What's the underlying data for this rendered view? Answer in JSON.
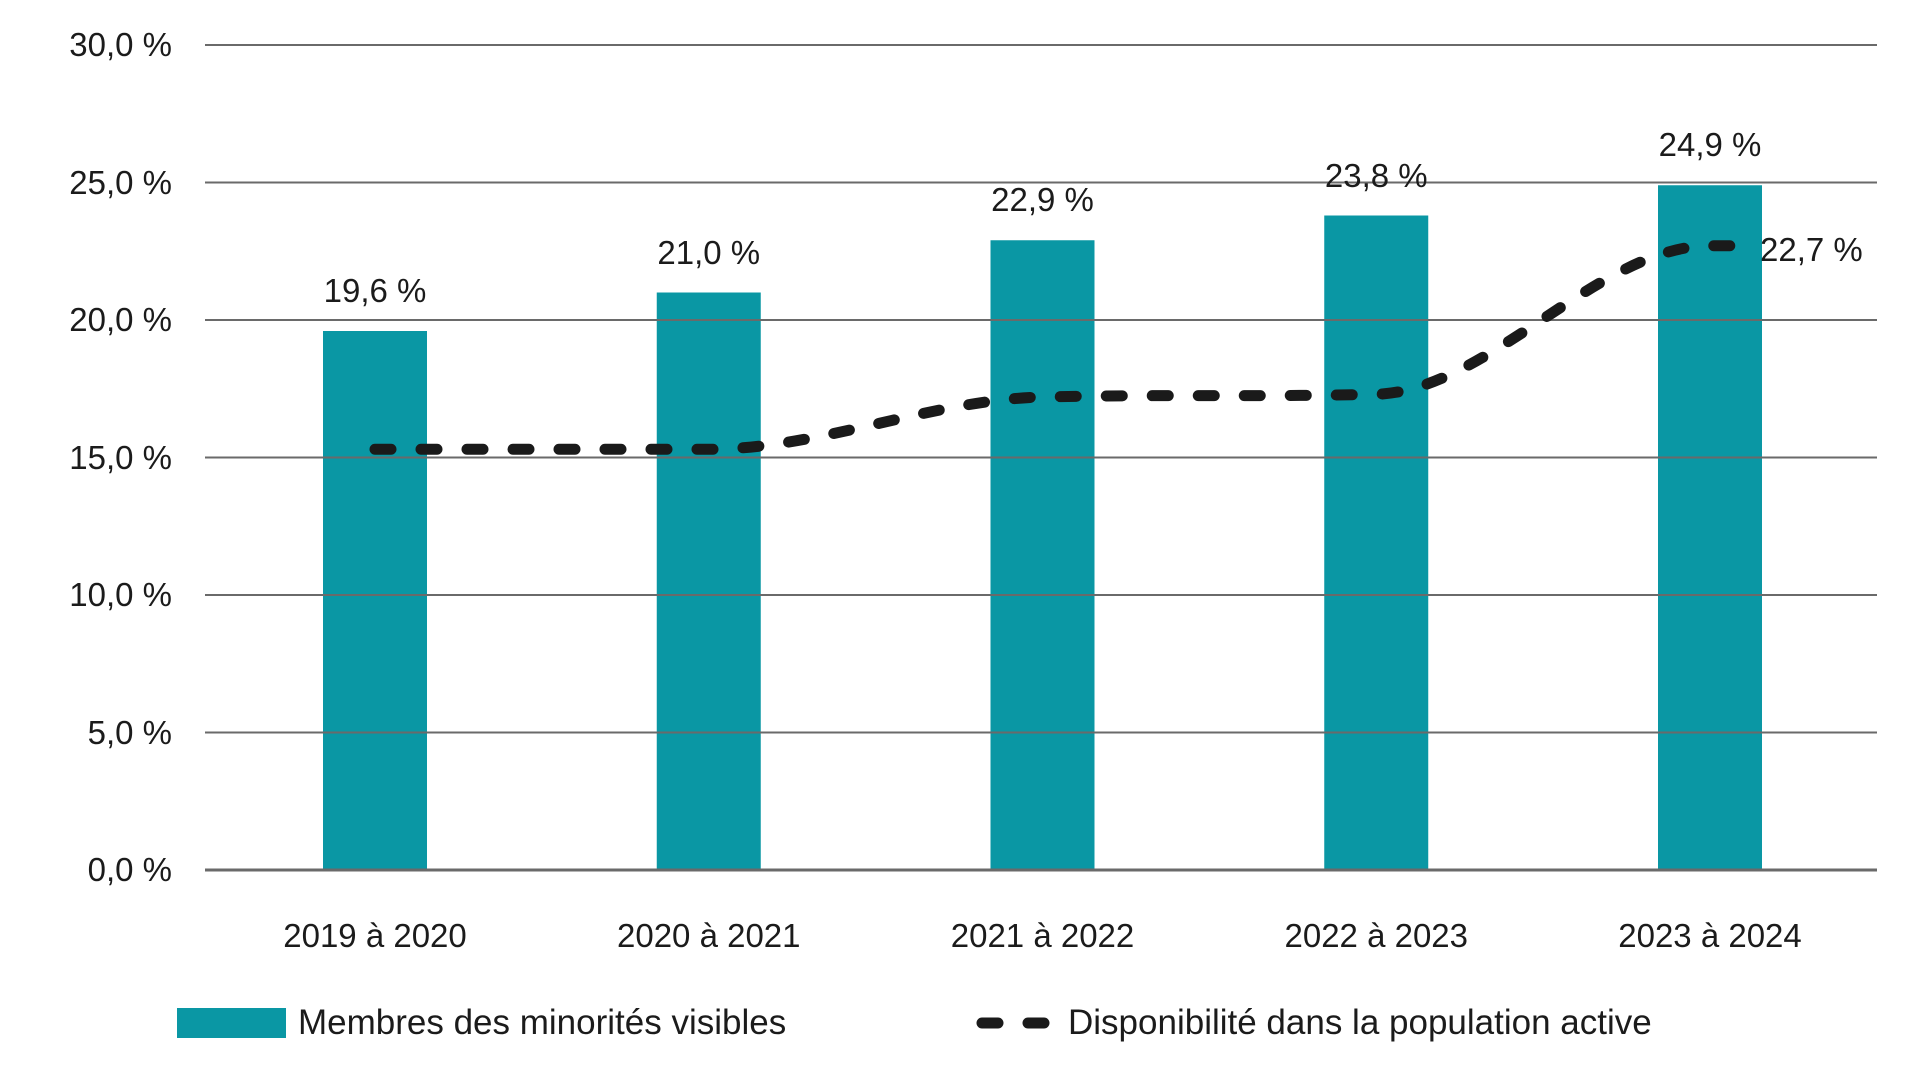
{
  "chart_data": {
    "type": "bar",
    "subtype": "bar-with-dashed-line-overlay",
    "categories": [
      "2019 à 2020",
      "2020 à 2021",
      "2021 à 2022",
      "2022 à 2023",
      "2023 à 2024"
    ],
    "series": [
      {
        "name": "Membres des minorités visibles",
        "type": "bar",
        "color": "#0A97A4",
        "values": [
          19.6,
          21.0,
          22.9,
          23.8,
          24.9
        ],
        "data_labels": [
          "19,6 %",
          "21,0 %",
          "22,9 %",
          "23,8 %",
          "24,9 %"
        ]
      },
      {
        "name": "Disponibilité dans la population active",
        "type": "line",
        "line_style": "dashed",
        "color": "#1A1A1A",
        "values": [
          15.3,
          15.3,
          17.2,
          17.3,
          22.7
        ],
        "end_label": "22,7 %"
      }
    ],
    "ylim": [
      0,
      30
    ],
    "y_tick_step": 5,
    "y_ticks": [
      "0,0 %",
      "5,0 %",
      "10,0 %",
      "15,0 %",
      "20,0 %",
      "25,0 %",
      "30,0 %"
    ],
    "grid": "horizontal",
    "legend_position": "bottom"
  },
  "legend": {
    "items": [
      {
        "label": "Membres des minorités visibles",
        "marker": "teal-swatch"
      },
      {
        "label": "Disponibilité dans la population active",
        "marker": "black-dashed-line"
      }
    ]
  },
  "colors": {
    "bar": "#0A97A4",
    "line": "#1A1A1A",
    "gridline": "#6A6A6A",
    "text": "#1B1B1B",
    "background": "#FFFFFF"
  }
}
